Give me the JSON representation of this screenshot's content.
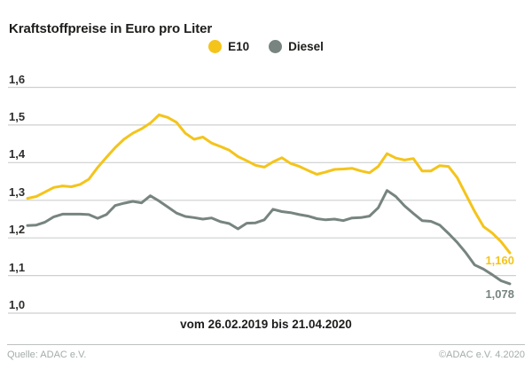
{
  "header": {
    "title": "Kraftstoffpreise in Euro pro Liter"
  },
  "legend": {
    "items": [
      {
        "label": "E10",
        "color": "#F4C41A"
      },
      {
        "label": "Diesel",
        "color": "#77847F"
      }
    ]
  },
  "chart_data": {
    "type": "line",
    "title": "Kraftstoffpreise in Euro pro Liter",
    "xlabel": "vom 26.02.2019 bis 21.04.2020",
    "ylabel": "Euro pro Liter",
    "ylim": [
      1.0,
      1.6
    ],
    "y_ticks": [
      "1,6",
      "1,5",
      "1,4",
      "1,3",
      "1,2",
      "1,1",
      "1,0"
    ],
    "grid": true,
    "legend_position": "top-center",
    "x_range": {
      "start": "26.02.2019",
      "end": "21.04.2020"
    },
    "series": [
      {
        "name": "E10",
        "color": "#F4C41A",
        "end_label": "1,160",
        "values": [
          1.305,
          1.31,
          1.322,
          1.334,
          1.338,
          1.336,
          1.342,
          1.356,
          1.387,
          1.414,
          1.44,
          1.462,
          1.478,
          1.49,
          1.505,
          1.527,
          1.52,
          1.507,
          1.478,
          1.462,
          1.468,
          1.452,
          1.443,
          1.433,
          1.416,
          1.405,
          1.393,
          1.388,
          1.402,
          1.413,
          1.398,
          1.39,
          1.379,
          1.369,
          1.375,
          1.382,
          1.383,
          1.385,
          1.378,
          1.373,
          1.39,
          1.424,
          1.412,
          1.407,
          1.411,
          1.378,
          1.378,
          1.392,
          1.39,
          1.36,
          1.315,
          1.27,
          1.23,
          1.213,
          1.19,
          1.16
        ]
      },
      {
        "name": "Diesel",
        "color": "#77847F",
        "end_label": "1,078",
        "values": [
          1.233,
          1.234,
          1.242,
          1.256,
          1.263,
          1.263,
          1.263,
          1.262,
          1.252,
          1.262,
          1.286,
          1.292,
          1.297,
          1.293,
          1.312,
          1.298,
          1.282,
          1.266,
          1.257,
          1.254,
          1.25,
          1.253,
          1.243,
          1.238,
          1.224,
          1.239,
          1.24,
          1.248,
          1.276,
          1.27,
          1.267,
          1.262,
          1.258,
          1.251,
          1.248,
          1.25,
          1.246,
          1.253,
          1.254,
          1.258,
          1.28,
          1.326,
          1.31,
          1.285,
          1.265,
          1.246,
          1.244,
          1.234,
          1.212,
          1.188,
          1.16,
          1.128,
          1.117,
          1.102,
          1.086,
          1.078
        ]
      }
    ]
  },
  "footer": {
    "source": "Quelle: ADAC e.V.",
    "copyright": "©ADAC e.V. 4.2020"
  },
  "colors": {
    "gridline": "#cdd0cf",
    "title_text": "#1d1d1b",
    "tick_text": "#2e2e2c",
    "footer_text": "#a3acaa"
  }
}
